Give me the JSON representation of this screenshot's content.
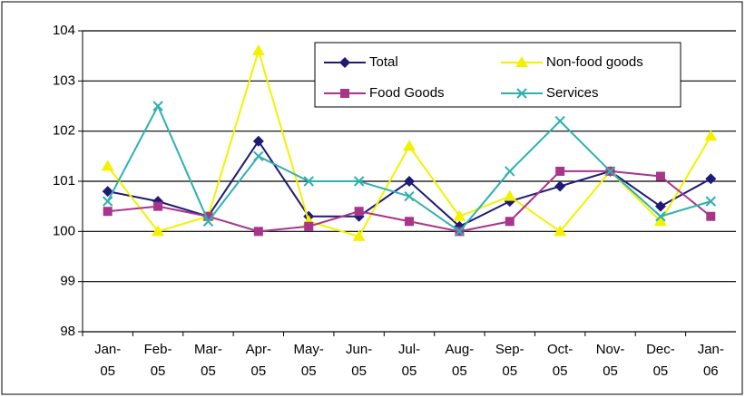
{
  "chart_data": {
    "type": "line",
    "categories": [
      "Jan-05",
      "Feb-05",
      "Mar-05",
      "Apr-05",
      "May-05",
      "Jun-05",
      "Jul-05",
      "Aug-05",
      "Sep-05",
      "Oct-05",
      "Nov-05",
      "Dec-05",
      "Jan-06"
    ],
    "series": [
      {
        "name": "Total",
        "color": "#1f1a75",
        "marker": "diamond",
        "values": [
          100.8,
          100.6,
          100.3,
          101.8,
          100.3,
          100.3,
          101.0,
          100.1,
          100.6,
          100.9,
          101.2,
          100.5,
          101.05
        ]
      },
      {
        "name": "Non-food goods",
        "color": "#f2f200",
        "marker": "triangle",
        "values": [
          101.3,
          100.0,
          100.3,
          103.6,
          100.2,
          99.9,
          101.7,
          100.3,
          100.7,
          100.0,
          101.2,
          100.2,
          101.9
        ]
      },
      {
        "name": "Food Goods",
        "color": "#a8358a",
        "marker": "square",
        "values": [
          100.4,
          100.5,
          100.3,
          100.0,
          100.1,
          100.4,
          100.2,
          100.0,
          100.2,
          101.2,
          101.2,
          101.1,
          100.3
        ]
      },
      {
        "name": "Services",
        "color": "#2fb0b0",
        "marker": "x",
        "values": [
          100.6,
          102.5,
          100.2,
          101.5,
          101.0,
          101.0,
          100.7,
          100.0,
          101.2,
          102.2,
          101.2,
          100.3,
          100.6
        ]
      }
    ],
    "ylim": [
      98,
      104
    ],
    "yticks": [
      98,
      99,
      100,
      101,
      102,
      103,
      104
    ],
    "grid": true
  }
}
